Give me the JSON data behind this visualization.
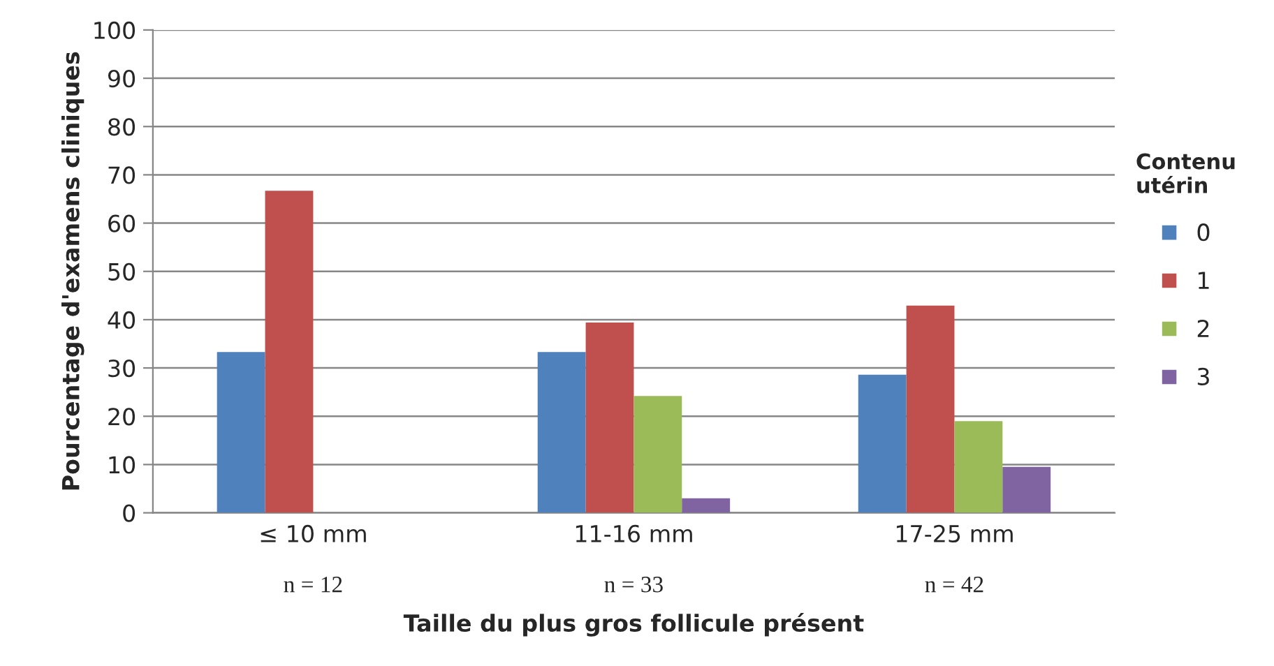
{
  "chart_data": {
    "type": "bar",
    "xlabel": "Taille du plus gros follicule présent",
    "ylabel": "Pourcentage d'examens cliniques",
    "legend_title": "Contenu\nutérin",
    "categories": [
      "≤ 10 mm",
      "11-16 mm",
      "17-25 mm"
    ],
    "series": [
      {
        "name": "0",
        "color": "#4f81bd",
        "values": [
          33.3,
          33.3,
          28.6
        ]
      },
      {
        "name": "1",
        "color": "#c0504d",
        "values": [
          66.7,
          39.4,
          42.9
        ]
      },
      {
        "name": "2",
        "color": "#9bbb59",
        "values": [
          0,
          24.2,
          19.0
        ]
      },
      {
        "name": "3",
        "color": "#8064a2",
        "values": [
          0,
          3.0,
          9.5
        ]
      }
    ],
    "annotations": [
      "n = 12",
      "n = 33",
      "n = 42"
    ],
    "ylim": [
      0,
      100
    ],
    "yticks": [
      0,
      10,
      20,
      30,
      40,
      50,
      60,
      70,
      80,
      90,
      100
    ],
    "grid": "y",
    "legend": "right"
  }
}
